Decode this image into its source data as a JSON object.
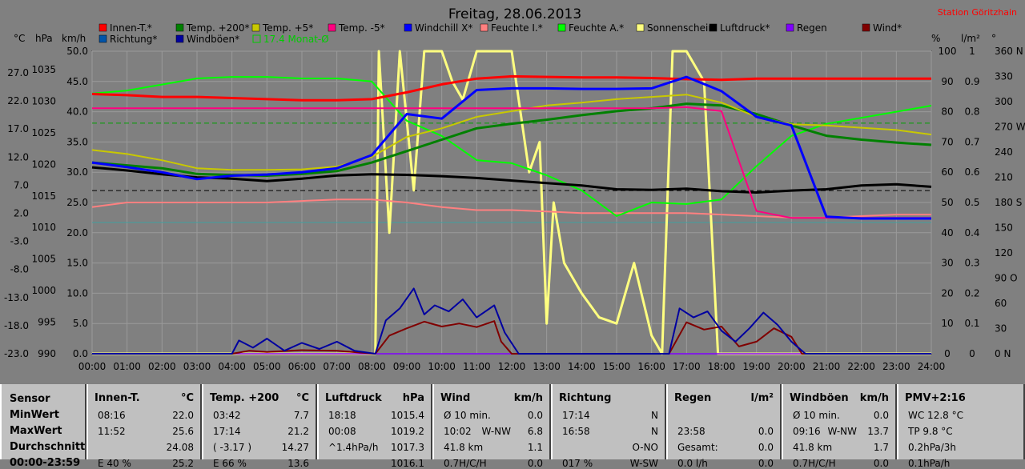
{
  "chart_data": {
    "type": "line",
    "title": "Freitag, 28.06.2013",
    "station": "Station Göritzhain",
    "x_ticks": [
      "00:00",
      "01:00",
      "02:00",
      "03:00",
      "04:00",
      "05:00",
      "06:00",
      "07:00",
      "08:00",
      "09:00",
      "10:00",
      "11:00",
      "12:00",
      "13:00",
      "14:00",
      "15:00",
      "16:00",
      "17:00",
      "18:00",
      "19:00",
      "20:00",
      "21:00",
      "22:00",
      "23:00",
      "24:00"
    ],
    "xlim": [
      0,
      24
    ],
    "axes": {
      "temp": {
        "unit": "°C",
        "ticks": [
          "27.0",
          "22.0",
          "17.0",
          "12.0",
          "7.0",
          "2.0",
          "-3.0",
          "-8.0",
          "-13.0",
          "-18.0",
          "-23.0"
        ],
        "range": [
          -23,
          30
        ]
      },
      "press": {
        "unit": "hPa",
        "ticks": [
          "1035",
          "1030",
          "1025",
          "1020",
          "1015",
          "1010",
          "1005",
          "1000",
          "995",
          "990"
        ],
        "range": [
          990,
          1038.2
        ]
      },
      "wind": {
        "unit": "km/h",
        "ticks": [
          "50.0",
          "45.0",
          "40.0",
          "35.0",
          "30.0",
          "25.0",
          "20.0",
          "15.0",
          "10.0",
          "5.0",
          "0.0"
        ],
        "range": [
          0,
          50
        ]
      },
      "hum": {
        "unit": "%",
        "ticks": [
          "100",
          "90",
          "80",
          "70",
          "60",
          "50",
          "40",
          "30",
          "20",
          "10",
          "0"
        ],
        "range": [
          0,
          100
        ]
      },
      "rain": {
        "unit": "l/m²",
        "ticks": [
          "1",
          "0.9",
          "0.8",
          "0.7",
          "0.6",
          "0.5",
          "0.4",
          "0.3",
          "0.2",
          "0.1",
          "0"
        ],
        "range": [
          0,
          1
        ]
      },
      "dir": {
        "unit": "°",
        "ticks": [
          "360 N",
          "330",
          "300",
          "270 W",
          "240",
          "210",
          "180 S",
          "150",
          "120",
          "90 O",
          "60",
          "30",
          "0 N"
        ],
        "range": [
          0,
          360
        ]
      }
    },
    "legend": [
      {
        "name": "Innen-T.*",
        "color": "#ff0000"
      },
      {
        "name": "Temp. +200*",
        "color": "#008000"
      },
      {
        "name": "Temp. +5*",
        "color": "#c8c800"
      },
      {
        "name": "Temp. -5*",
        "color": "#ff0080"
      },
      {
        "name": "Windchill X*",
        "color": "#0000ff"
      },
      {
        "name": "Feuchte I.*",
        "color": "#ff8080"
      },
      {
        "name": "Feuchte A.*",
        "color": "#00ff00"
      },
      {
        "name": "Sonnenschein",
        "color": "#ffff80"
      },
      {
        "name": "Luftdruck*",
        "color": "#000000"
      },
      {
        "name": "Regen",
        "color": "#8000ff"
      },
      {
        "name": "Wind*",
        "color": "#800000"
      },
      {
        "name": "Richtung*",
        "color": "#0055aa"
      },
      {
        "name": "Windböen*",
        "color": "#0000a0"
      }
    ],
    "monthly_avg_label": "17.4 Monat-Ø",
    "monthly_avg": 17.4,
    "series": [
      {
        "name": "Innen-T.*",
        "axis": "temp",
        "color": "#ff0000",
        "x": [
          0,
          1,
          2,
          3,
          4,
          5,
          6,
          7,
          8,
          9,
          10,
          11,
          12,
          13,
          14,
          15,
          16,
          17,
          18,
          19,
          20,
          21,
          22,
          23,
          24
        ],
        "y": [
          22.5,
          22.3,
          22.0,
          22.0,
          21.8,
          21.6,
          21.4,
          21.4,
          21.6,
          22.8,
          24.2,
          25.2,
          25.6,
          25.5,
          25.4,
          25.4,
          25.3,
          25.1,
          25.0,
          25.2,
          25.2,
          25.2,
          25.2,
          25.2,
          25.2
        ]
      },
      {
        "name": "Temp. +200*",
        "axis": "temp",
        "color": "#008000",
        "x": [
          0,
          1,
          2,
          3,
          4,
          5,
          6,
          7,
          8,
          9,
          10,
          11,
          12,
          13,
          14,
          15,
          16,
          17,
          18,
          19,
          20,
          21,
          22,
          23,
          24
        ],
        "y": [
          10.5,
          10.0,
          9.5,
          8.5,
          8.3,
          8.2,
          8.5,
          9.0,
          10.5,
          12.5,
          14.5,
          16.5,
          17.3,
          18.0,
          18.8,
          19.5,
          20.0,
          20.8,
          20.5,
          19.0,
          17.0,
          15.2,
          14.5,
          14.0,
          13.6
        ]
      },
      {
        "name": "Temp. +5*",
        "axis": "temp",
        "color": "#c8c800",
        "x": [
          0,
          1,
          2,
          3,
          4,
          5,
          6,
          7,
          8,
          9,
          10,
          11,
          12,
          13,
          14,
          15,
          16,
          17,
          18,
          19,
          20,
          21,
          22,
          23,
          24
        ],
        "y": [
          12.7,
          12.0,
          10.9,
          9.5,
          9.2,
          9.2,
          9.3,
          9.8,
          11.5,
          15.0,
          16.5,
          18.5,
          19.5,
          20.5,
          21.0,
          21.6,
          22.0,
          22.4,
          21.0,
          18.5,
          17.2,
          17.0,
          16.6,
          16.2,
          15.4
        ]
      },
      {
        "name": "Temp. -5*",
        "axis": "temp",
        "color": "#ff0080",
        "x": [
          0,
          1,
          2,
          3,
          4,
          5,
          6,
          7,
          8,
          9,
          10,
          11,
          12,
          13,
          14,
          15,
          16,
          17,
          18,
          19,
          20,
          21,
          22,
          23,
          24
        ],
        "y": [
          20.0,
          20.0,
          20.0,
          20.0,
          20.0,
          20.0,
          20.0,
          20.0,
          20.0,
          20.0,
          20.0,
          20.0,
          20.0,
          20.0,
          20.0,
          20.0,
          20.0,
          20.2,
          19.5,
          2.0,
          0.8,
          0.8,
          0.8,
          0.8,
          0.8
        ]
      },
      {
        "name": "Windchill X*",
        "axis": "temp",
        "color": "#0000ff",
        "x": [
          0,
          1,
          2,
          3,
          4,
          5,
          6,
          7,
          8,
          9,
          10,
          11,
          12,
          13,
          14,
          15,
          16,
          17,
          18,
          19,
          20,
          21,
          22,
          23,
          24
        ],
        "y": [
          10.5,
          9.7,
          8.8,
          7.6,
          8.2,
          8.4,
          8.8,
          9.5,
          11.8,
          19.0,
          18.2,
          23.2,
          23.5,
          23.5,
          23.4,
          23.4,
          23.5,
          25.5,
          23.0,
          18.5,
          17.0,
          1.0,
          0.7,
          0.7,
          0.7
        ]
      },
      {
        "name": "Feuchte I.*",
        "axis": "hum",
        "color": "#ff8080",
        "x": [
          0,
          1,
          2,
          3,
          4,
          5,
          6,
          7,
          8,
          9,
          10,
          11,
          12,
          13,
          14,
          15,
          16,
          17,
          18,
          19,
          20,
          21,
          22,
          23,
          24
        ],
        "y": [
          48.5,
          50.0,
          50.0,
          50.0,
          50.0,
          50.0,
          50.5,
          51.0,
          51.0,
          50.0,
          48.5,
          47.5,
          47.5,
          47.0,
          46.5,
          46.5,
          46.5,
          46.5,
          46.0,
          45.5,
          45.0,
          45.0,
          45.5,
          46.0,
          46.0
        ]
      },
      {
        "name": "Feuchte A.*",
        "axis": "hum",
        "color": "#00ff00",
        "x": [
          0,
          1,
          2,
          3,
          4,
          5,
          6,
          7,
          8,
          9,
          10,
          11,
          12,
          13,
          14,
          15,
          16,
          17,
          18,
          19,
          20,
          21,
          22,
          23,
          24
        ],
        "y": [
          86.0,
          87.0,
          89.0,
          91.0,
          91.5,
          91.5,
          91.0,
          91.0,
          90.0,
          77.0,
          72.0,
          64.0,
          63.0,
          59.0,
          54.0,
          45.5,
          50.0,
          49.5,
          51.0,
          62.0,
          72.0,
          76.0,
          78.0,
          80.0,
          82.0
        ]
      },
      {
        "name": "Sonnenschein",
        "axis": "wind",
        "color": "#ffff80",
        "x": [
          0,
          8.1,
          8.2,
          8.5,
          8.8,
          9.2,
          9.5,
          9.8,
          10.0,
          10.3,
          10.6,
          11.0,
          12.0,
          12.5,
          12.8,
          13.0,
          13.2,
          13.5,
          14.0,
          14.5,
          15.0,
          15.5,
          16.0,
          16.3,
          16.6,
          17.0,
          17.5,
          17.9,
          18.1,
          18.5,
          24
        ],
        "y": [
          0,
          0,
          50,
          20,
          50,
          27,
          50,
          50,
          50,
          45,
          42,
          50,
          50,
          30,
          35,
          5,
          25,
          15,
          10,
          6,
          5,
          15,
          3,
          0,
          50,
          50,
          45,
          0,
          0,
          0,
          0
        ]
      },
      {
        "name": "Luftdruck*",
        "axis": "press",
        "color": "#000000",
        "x": [
          0,
          1,
          2,
          3,
          4,
          5,
          6,
          7,
          8,
          9,
          10,
          11,
          12,
          13,
          14,
          15,
          16,
          17,
          18,
          19,
          20,
          21,
          22,
          23,
          24
        ],
        "y": [
          1019.7,
          1019.2,
          1018.6,
          1018.1,
          1017.9,
          1017.5,
          1017.9,
          1018.4,
          1018.6,
          1018.5,
          1018.3,
          1018.0,
          1017.6,
          1017.2,
          1016.8,
          1016.2,
          1016.1,
          1016.3,
          1015.9,
          1015.7,
          1016.0,
          1016.2,
          1016.8,
          1017.0,
          1016.6
        ]
      },
      {
        "name": "Regen",
        "axis": "rain",
        "color": "#8000ff",
        "x": [
          0,
          24
        ],
        "y": [
          0,
          0
        ]
      },
      {
        "name": "Wind*",
        "axis": "wind",
        "color": "#800000",
        "x": [
          0,
          4.0,
          4.5,
          5.0,
          6.0,
          7.0,
          8.1,
          8.5,
          9.0,
          9.5,
          10.0,
          10.5,
          11.0,
          11.5,
          11.7,
          12,
          16.5,
          17.0,
          17.5,
          18.0,
          18.5,
          19.0,
          19.5,
          20.0,
          20.3,
          24
        ],
        "y": [
          0,
          0,
          0.5,
          0.3,
          0.6,
          0.5,
          0,
          3.0,
          4.2,
          5.3,
          4.5,
          5.0,
          4.4,
          5.4,
          2.0,
          0,
          0,
          5.2,
          4.0,
          4.5,
          1.2,
          2.0,
          4.2,
          2.8,
          0,
          0
        ]
      },
      {
        "name": "Windböen*",
        "axis": "wind",
        "color": "#0000a0",
        "x": [
          0,
          4.0,
          4.2,
          4.6,
          5.0,
          5.5,
          6.0,
          6.5,
          7.0,
          7.5,
          8.1,
          8.4,
          8.8,
          9.2,
          9.5,
          9.8,
          10.2,
          10.6,
          11.0,
          11.5,
          11.8,
          12.2,
          16.5,
          16.8,
          17.2,
          17.6,
          18.0,
          18.4,
          18.8,
          19.2,
          19.6,
          20.0,
          20.4,
          24
        ],
        "y": [
          0,
          0,
          2.2,
          1.0,
          2.5,
          0.5,
          1.8,
          0.8,
          2.0,
          0.5,
          0,
          5.5,
          7.5,
          10.8,
          6.5,
          8.0,
          7.0,
          9.0,
          6.0,
          8.0,
          3.5,
          0,
          0,
          7.5,
          6.0,
          7.0,
          3.8,
          2.0,
          4.2,
          6.8,
          4.8,
          2.0,
          0,
          0
        ]
      }
    ]
  },
  "table": {
    "row_labels": [
      "Sensor",
      "MinWert",
      "MaxWert",
      "Durchschnitt",
      "00:00-23:59"
    ],
    "columns": [
      {
        "title": "Innen-T.",
        "unit": "°C",
        "rows": [
          [
            "08:16",
            "",
            "22.0"
          ],
          [
            "11:52",
            "",
            "25.6"
          ],
          [
            "",
            "",
            "24.08"
          ],
          [
            "E 40 %",
            "",
            "25.2"
          ]
        ]
      },
      {
        "title": "Temp. +200",
        "unit": "°C",
        "rows": [
          [
            "03:42",
            "",
            "7.7"
          ],
          [
            "17:14",
            "",
            "21.2"
          ],
          [
            "( -3.17 )",
            "",
            "14.27"
          ],
          [
            "E 66 %",
            "",
            "13.6"
          ]
        ]
      },
      {
        "title": "Luftdruck",
        "unit": "hPa",
        "rows": [
          [
            "18:18",
            "",
            "1015.4"
          ],
          [
            "00:08",
            "",
            "1019.2"
          ],
          [
            "^1.4hPa/h",
            "",
            "1017.3"
          ],
          [
            "",
            "",
            "1016.1"
          ]
        ]
      },
      {
        "title": "Wind",
        "unit": "km/h",
        "rows": [
          [
            "Ø 10 min.",
            "",
            "0.0"
          ],
          [
            "10:02",
            "W-NW",
            "6.8"
          ],
          [
            "41.8 km",
            "",
            "1.1"
          ],
          [
            "0.7H/C/H",
            "",
            "0.0"
          ]
        ]
      },
      {
        "title": "Richtung",
        "unit": "",
        "rows": [
          [
            "17:14",
            "",
            "N"
          ],
          [
            "16:58",
            "",
            "N"
          ],
          [
            "",
            "",
            "O-NO"
          ],
          [
            "017 %",
            "",
            "W-SW"
          ]
        ]
      },
      {
        "title": "Regen",
        "unit": "l/m²",
        "rows": [
          [
            "",
            "",
            ""
          ],
          [
            "23:58",
            "",
            "0.0"
          ],
          [
            "Gesamt:",
            "",
            "0.0"
          ],
          [
            "0.0 l/h",
            "",
            "0.0"
          ]
        ]
      },
      {
        "title": "Windböen",
        "unit": "km/h",
        "rows": [
          [
            "Ø 10 min.",
            "",
            "0.0"
          ],
          [
            "09:16",
            "W-NW",
            "13.7"
          ],
          [
            "41.8 km",
            "",
            "1.7"
          ],
          [
            "0.7H/C/H",
            "",
            "0.0"
          ]
        ]
      },
      {
        "title": "PMV+2:16",
        "unit": "",
        "rows": [
          [
            "WC 12.8 °C",
            "",
            ""
          ],
          [
            "TP 9.8 °C",
            "",
            ""
          ],
          [
            "0.2hPa/3h",
            "",
            ""
          ],
          [
            "0.1hPa/h",
            "",
            ""
          ]
        ]
      }
    ]
  }
}
